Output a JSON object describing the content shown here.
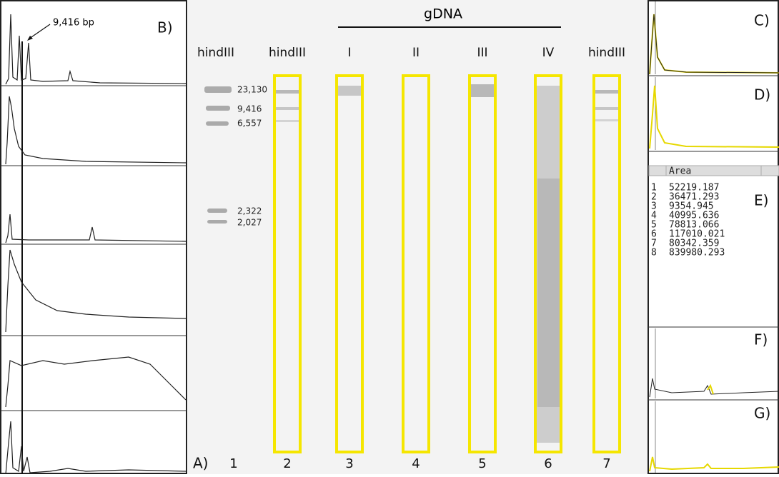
{
  "panel_b": {
    "label": "B)",
    "annotation": "9,416 bp"
  },
  "gel": {
    "panel_label": "A)",
    "group_label": "gDNA",
    "lane_headers": [
      "hindIII",
      "hindIII",
      "I",
      "II",
      "III",
      "IV",
      "hindIII"
    ],
    "lane_numbers": [
      "1",
      "2",
      "3",
      "4",
      "5",
      "6",
      "7"
    ],
    "markers": [
      "23,130",
      "9,416",
      "6,557",
      "2,322",
      "2,027"
    ]
  },
  "panel_c": {
    "label": "C)"
  },
  "panel_d": {
    "label": "D)"
  },
  "panel_e": {
    "label": "E)",
    "table": {
      "header": "Area",
      "rows": [
        [
          "1",
          "52219.187"
        ],
        [
          "2",
          "36471.293"
        ],
        [
          "3",
          "9354.945"
        ],
        [
          "4",
          "40995.636"
        ],
        [
          "5",
          "78813.066"
        ],
        [
          "6",
          "117010.021"
        ],
        [
          "7",
          "80342.359"
        ],
        [
          "8",
          "839980.293"
        ]
      ]
    }
  },
  "panel_f": {
    "label": "F)"
  },
  "panel_g": {
    "label": "G)"
  }
}
